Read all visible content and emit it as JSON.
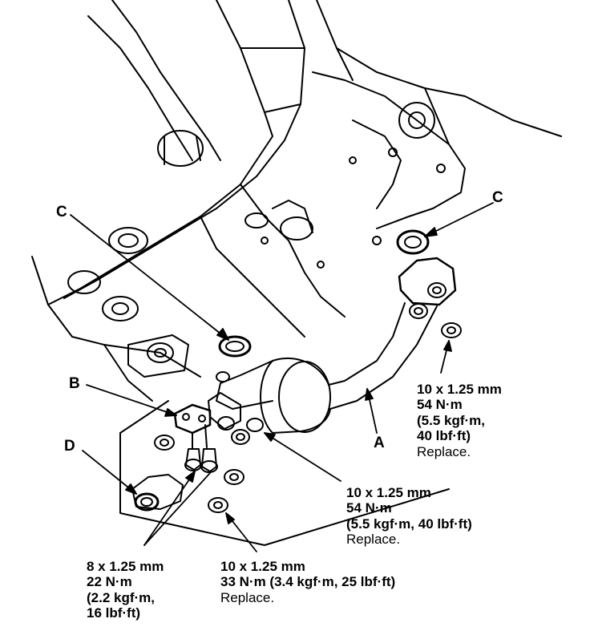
{
  "labels": {
    "a": "A",
    "b": "B",
    "c_left": "C",
    "c_right": "C",
    "d": "D"
  },
  "specs": {
    "right_nut": {
      "size": "10 x 1.25 mm",
      "torque": "54 N·m",
      "line3": "(5.5 kgf·m,",
      "line4": "40 lbf·ft)",
      "note": "Replace."
    },
    "middle_nut": {
      "size": "10 x 1.25 mm",
      "torque": "54 N·m",
      "metric": "(5.5 kgf·m, 40 lbf·ft)",
      "note": "Replace."
    },
    "bottom_nut": {
      "size": "10 x 1.25 mm",
      "torque": "33 N·m (3.4 kgf·m, 25 lbf·ft)",
      "note": "Replace."
    },
    "bolt": {
      "size": "8 x 1.25 mm",
      "torque": "22 N·m",
      "line3": "(2.2 kgf·m,",
      "line4": "16 lbf·ft)"
    }
  },
  "colors": {
    "ink": "#000000",
    "paper": "#ffffff"
  }
}
